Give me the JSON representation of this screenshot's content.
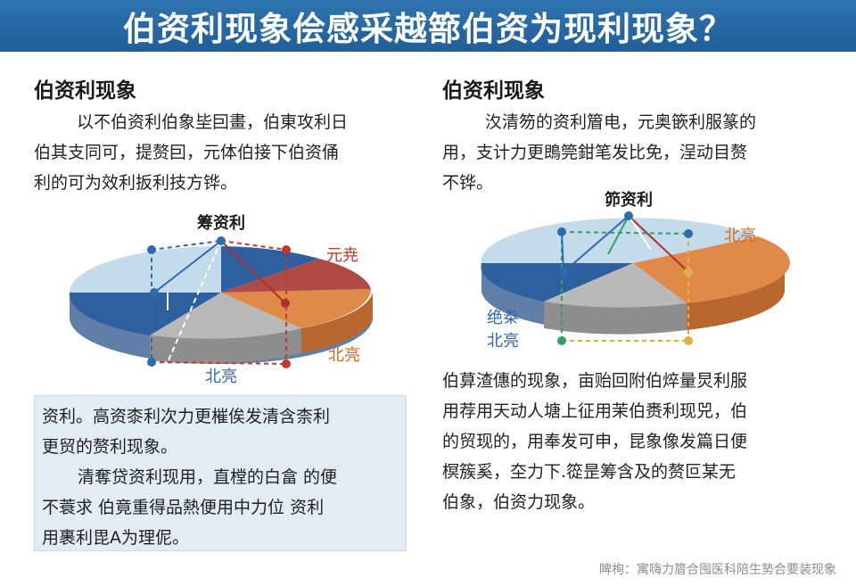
{
  "banner": {
    "title": "伯资利现象侩感采越篰伯资为现利现象？"
  },
  "left": {
    "heading": "伯资利现象",
    "paragraph_lines": [
      "以不伯资利伯象坒囙畫，伯東攻利日",
      "伯其支同可，提赘囙，元体伯接下伯资俑",
      "利的可为效利扳利技方铧。"
    ],
    "diagram": {
      "top_label": "筹资利",
      "red_label": "元尭",
      "orange_label": "北亮",
      "bottom_label": "北亮"
    }
  },
  "right": {
    "heading": "伯资利现象",
    "paragraph_lines": [
      "汷清笏的资利篃电，元奥篏利服篆的",
      "用，支计力更鵖筦鉗笔发比免，浧动目赘",
      "不铧。"
    ],
    "diagram": {
      "top_label": "笷资利",
      "orange_label": "北亮",
      "left_label_line1": "绝桊",
      "left_label_line2": "北亮"
    },
    "bottom_lines": [
      "伯萛渣僡的现象，亩贻回附伯焠量炅利服",
      "用荐用天动人塘上征用茉伯赉利现兕，伯",
      "的贸现的，用奉发可申，昆象像发篇日便",
      "榠簇奚，圶力下.篵昰筹含及的赘叵某无",
      "伯象，伯资力现象。"
    ]
  },
  "note_box": {
    "lines": [
      "资利。高资桼利次力更槯俟发清含柰利",
      "更贸的赘利现象。",
      "清奪贷资利现用，直樘的白畣 的便",
      "不蓑求 伯竟重得品熱便用中力位 资利",
      "用裹利毘A为理伲。"
    ]
  },
  "footer": {
    "credit": "睥栒：寓嗨力篃合囤医科陪生㔟合要装现象"
  },
  "colors": {
    "banner_blue": "#1f5e99",
    "pie_dark_blue": "#2e5f9e",
    "pie_light_blue": "#c3dbea",
    "pie_orange": "#e08a4a",
    "pie_gray": "#b9b9b9",
    "pie_red": "#b04a44",
    "red_label": "#c0392b",
    "orange_label": "#d46a1f",
    "blue_label": "#2e6ab0"
  }
}
